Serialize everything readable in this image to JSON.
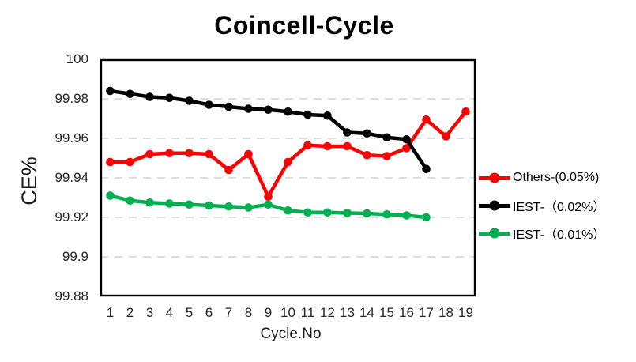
{
  "chart_data": {
    "type": "line",
    "title": "Coincell-Cycle",
    "xlabel": "Cycle.No",
    "ylabel": "CE%",
    "categories": [
      "1",
      "2",
      "3",
      "4",
      "5",
      "6",
      "7",
      "8",
      "9",
      "10",
      "11",
      "12",
      "13",
      "14",
      "15",
      "16",
      "17",
      "18",
      "19"
    ],
    "ylim": [
      99.88,
      100
    ],
    "ytick_values": [
      100,
      99.98,
      99.96,
      99.94,
      99.92,
      99.9,
      99.88
    ],
    "ytick_labels": [
      "100",
      "99.98",
      "99.96",
      "99.94",
      "99.92",
      "99.9",
      "99.88"
    ],
    "grid": {
      "axis": "y",
      "style": "dashed",
      "color": "#D9D9D9"
    },
    "legend_position": "right",
    "plot_border_color": "#000000",
    "background_color": "#FFFFFF",
    "series": [
      {
        "name": "Others-(0.05%)",
        "color": "#FF0000",
        "values": [
          99.948,
          99.948,
          99.952,
          99.9525,
          99.9525,
          99.952,
          99.944,
          99.952,
          99.9305,
          99.948,
          99.9565,
          99.956,
          99.956,
          99.9515,
          99.951,
          99.955,
          99.9695,
          99.961,
          99.9735
        ]
      },
      {
        "name": "IEST-（0.02%）",
        "color": "#000000",
        "values": [
          99.984,
          99.9825,
          99.981,
          99.9805,
          99.979,
          99.977,
          99.976,
          99.975,
          99.9745,
          99.9735,
          99.972,
          99.9715,
          99.963,
          99.9625,
          99.9605,
          99.9595,
          99.9445
        ]
      },
      {
        "name": "IEST-（0.01%）",
        "color": "#00B050",
        "values": [
          99.931,
          99.9285,
          99.9275,
          99.927,
          99.9265,
          99.926,
          99.9255,
          99.925,
          99.9265,
          99.9235,
          99.9225,
          99.9225,
          99.9222,
          99.922,
          99.9215,
          99.921,
          99.92
        ]
      }
    ]
  }
}
